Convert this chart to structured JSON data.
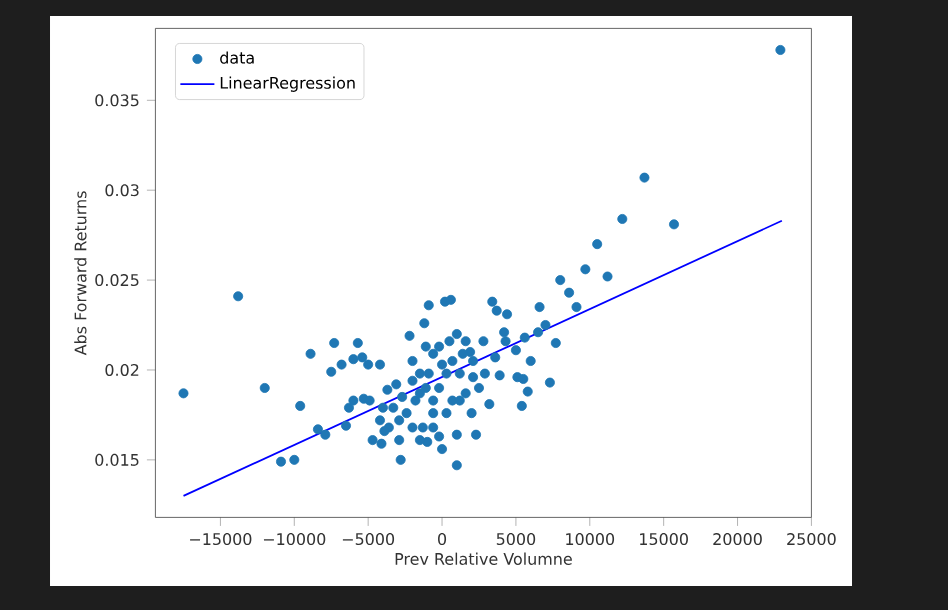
{
  "chart_data": {
    "type": "scatter",
    "xlabel": "Prev Relative Volumne",
    "ylabel": "Abs Forward Returns",
    "xlim": [
      -19400,
      25000
    ],
    "ylim": [
      0.0118,
      0.039
    ],
    "xticks": [
      {
        "value": -15000,
        "label": "−15000"
      },
      {
        "value": -10000,
        "label": "−10000"
      },
      {
        "value": -5000,
        "label": "−5000"
      },
      0,
      5000,
      10000,
      15000,
      20000,
      25000
    ],
    "yticks": [
      0.015,
      0.02,
      0.025,
      0.03,
      0.035
    ],
    "legend": "top left",
    "grid": false,
    "series": [
      {
        "name": "data",
        "marker": "circle",
        "color": "#1f77b4",
        "x": [
          22900,
          13700,
          12200,
          15700,
          10500,
          9700,
          11200,
          8000,
          8600,
          9100,
          -13800,
          -17500,
          -12000,
          -9600,
          -8900,
          -10900,
          -10000,
          -8400,
          -7900,
          -7300,
          -7500,
          -6800,
          -6500,
          -6300,
          -5700,
          -6000,
          -5400,
          -5000,
          -4200,
          -6000,
          -5300,
          -4700,
          -4100,
          -3600,
          -3700,
          -2900,
          -2800,
          -2200,
          -1200,
          -900,
          200,
          600,
          -1000,
          0,
          1000,
          1000,
          -200,
          2300,
          3200,
          2800,
          3400,
          3700,
          4400,
          4200,
          4300,
          3900,
          3600,
          5000,
          5100,
          5500,
          5400,
          5800,
          6000,
          6500,
          6600,
          7000,
          7300,
          7700,
          5600,
          1900,
          2100,
          2000,
          2900,
          1600,
          -2000,
          -1500,
          -1100,
          -600,
          -200,
          300,
          700,
          1200,
          700,
          300,
          -600,
          -200,
          -1100,
          -1800,
          -2400,
          -2900,
          -3300,
          -2000,
          -1300,
          -600,
          1200,
          1400,
          2100,
          500,
          1000,
          0,
          -900,
          -1500,
          2500,
          1600,
          -2000,
          -2700,
          -3100,
          -4200,
          -4000,
          -4900,
          -3900,
          -1500,
          -600
        ],
        "values": [
          0.0378,
          0.0307,
          0.0284,
          0.0281,
          0.027,
          0.0256,
          0.0252,
          0.025,
          0.0243,
          0.0235,
          0.0241,
          0.0187,
          0.019,
          0.018,
          0.0209,
          0.0149,
          0.015,
          0.0167,
          0.0164,
          0.0215,
          0.0199,
          0.0203,
          0.0169,
          0.0179,
          0.0215,
          0.0206,
          0.0207,
          0.0203,
          0.0203,
          0.0183,
          0.0184,
          0.0161,
          0.0159,
          0.0168,
          0.0189,
          0.0161,
          0.015,
          0.0219,
          0.0226,
          0.0236,
          0.0238,
          0.0239,
          0.016,
          0.0156,
          0.0147,
          0.0164,
          0.0163,
          0.0164,
          0.0181,
          0.0216,
          0.0238,
          0.0233,
          0.0231,
          0.0221,
          0.0216,
          0.0197,
          0.0207,
          0.0211,
          0.0196,
          0.0195,
          0.018,
          0.0188,
          0.0205,
          0.0221,
          0.0235,
          0.0225,
          0.0193,
          0.0215,
          0.0218,
          0.021,
          0.0196,
          0.0176,
          0.0198,
          0.0187,
          0.0205,
          0.0198,
          0.019,
          0.0183,
          0.019,
          0.0198,
          0.0205,
          0.0198,
          0.0183,
          0.0176,
          0.0209,
          0.0213,
          0.0213,
          0.0183,
          0.0176,
          0.0172,
          0.0179,
          0.0168,
          0.0168,
          0.0176,
          0.0183,
          0.0209,
          0.0205,
          0.0216,
          0.022,
          0.0203,
          0.0198,
          0.0187,
          0.019,
          0.0216,
          0.0194,
          0.0185,
          0.0192,
          0.0172,
          0.0179,
          0.0183,
          0.0166,
          0.0161,
          0.0168
        ]
      },
      {
        "name": "LinearRegression",
        "type": "line",
        "marker": "none",
        "line_style": "solid",
        "color": "#0000ff",
        "x": [
          -17500,
          23000
        ],
        "values": [
          0.013,
          0.0283
        ]
      }
    ]
  }
}
